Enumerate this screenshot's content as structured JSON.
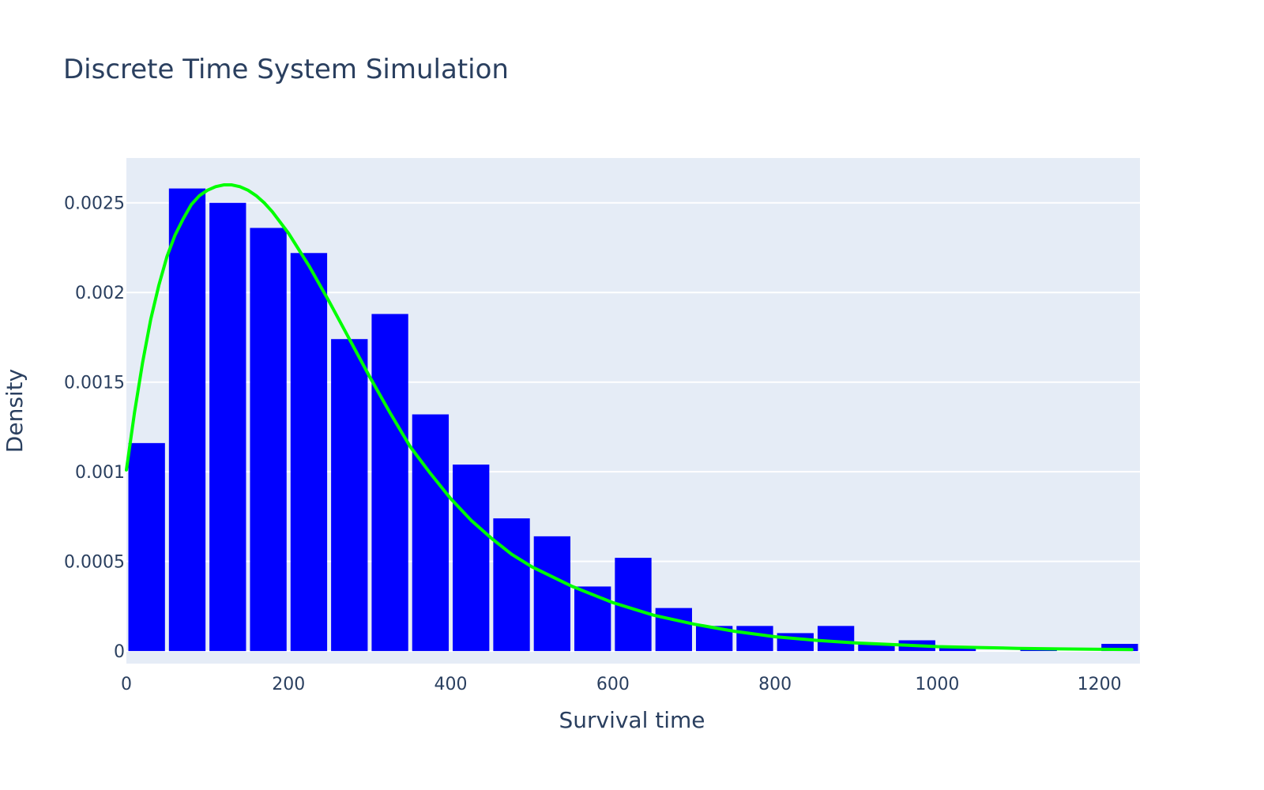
{
  "chart_data": {
    "type": "bar",
    "title": "Discrete Time System Simulation",
    "xlabel": "Survival time",
    "ylabel": "Density",
    "xlim": [
      0,
      1250
    ],
    "ylim": [
      -7e-05,
      0.00275
    ],
    "x_ticks": [
      0,
      200,
      400,
      600,
      800,
      1000,
      1200
    ],
    "x_tick_labels": [
      "0",
      "200",
      "400",
      "600",
      "800",
      "1000",
      "1200"
    ],
    "y_ticks": [
      0,
      0.0005,
      0.001,
      0.0015,
      0.002,
      0.0025
    ],
    "y_tick_labels": [
      "0",
      "0.0005",
      "0.001",
      "0.0015",
      "0.002",
      "0.0025"
    ],
    "grid": true,
    "colors": {
      "plot_background": "#e5ecf6",
      "grid": "#ffffff",
      "bars": "#0000ff",
      "curve": "#00ff00",
      "text": "#2a3f5f"
    },
    "series": [
      {
        "type": "histogram",
        "bin_width": 50,
        "x": [
          25,
          75,
          125,
          175,
          225,
          275,
          325,
          375,
          425,
          475,
          525,
          575,
          625,
          675,
          725,
          775,
          825,
          875,
          925,
          975,
          1025,
          1075,
          1125,
          1175,
          1225
        ],
        "values": [
          0.00116,
          0.00258,
          0.0025,
          0.00236,
          0.00222,
          0.00174,
          0.00188,
          0.00132,
          0.00104,
          0.00074,
          0.00064,
          0.00036,
          0.00052,
          0.00024,
          0.00014,
          0.00014,
          0.0001,
          0.00014,
          4e-05,
          6e-05,
          2e-05,
          0.0,
          1e-05,
          0.0,
          4e-05
        ]
      },
      {
        "type": "line",
        "x": [
          0,
          10,
          20,
          30,
          40,
          50,
          60,
          70,
          80,
          90,
          100,
          110,
          120,
          130,
          140,
          150,
          160,
          170,
          180,
          190,
          200,
          225,
          250,
          275,
          300,
          325,
          350,
          375,
          400,
          425,
          450,
          475,
          500,
          550,
          600,
          650,
          700,
          750,
          800,
          850,
          900,
          950,
          1000,
          1050,
          1100,
          1150,
          1200,
          1240
        ],
        "values": [
          0.00101,
          0.00133,
          0.00161,
          0.00185,
          0.00204,
          0.0022,
          0.00232,
          0.00241,
          0.00249,
          0.00254,
          0.00257,
          0.00259,
          0.0026,
          0.0026,
          0.00259,
          0.00257,
          0.00254,
          0.0025,
          0.00245,
          0.00239,
          0.00233,
          0.00215,
          0.00195,
          0.00174,
          0.00153,
          0.00133,
          0.00114,
          0.00099,
          0.00085,
          0.00073,
          0.00063,
          0.00054,
          0.00047,
          0.00036,
          0.00027,
          0.0002,
          0.00015,
          0.00011,
          8e-05,
          6e-05,
          4.5e-05,
          3.5e-05,
          2.5e-05,
          2e-05,
          1.5e-05,
          1.2e-05,
          1e-05,
          8e-06
        ]
      }
    ]
  }
}
